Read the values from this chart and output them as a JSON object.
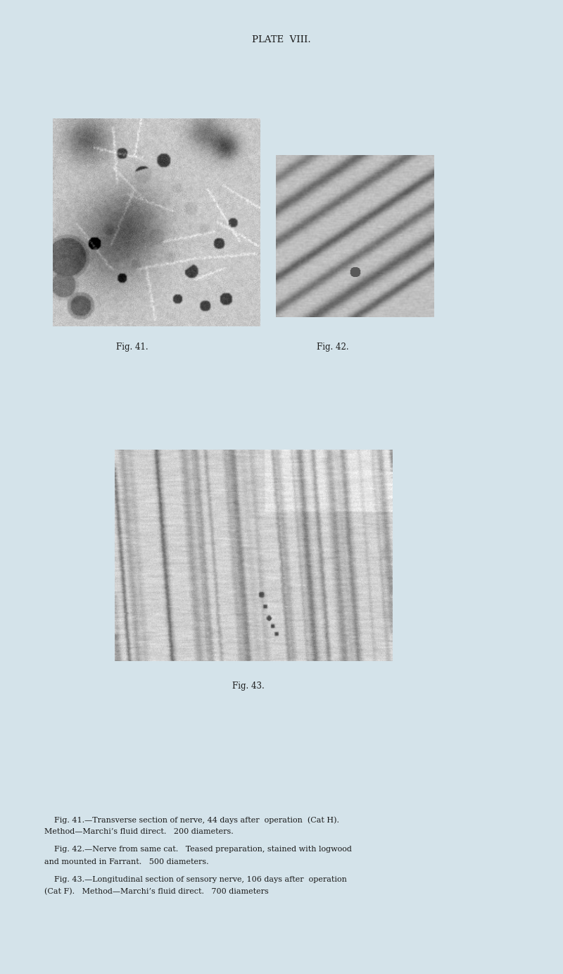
{
  "background_color": "#d4e3ea",
  "page_title": "PLATE  VIII.",
  "title_fontsize": 9.5,
  "label_fontsize": 8.5,
  "caption_fontsize": 8.0,
  "text_color": "#1a1a1a",
  "fig41_caption": "Fig. 41.",
  "fig42_caption": "Fig. 42.",
  "fig43_caption": "Fig. 43.",
  "caption_text_line1": "    Fig. 41.—Transverse section of nerve, 44 days after  operation  (Cat H).",
  "caption_text_line2": "Method—Marchi’s fluid direct.   200 diameters.",
  "caption_text_line3": "    Fig. 42.—Nerve from same cat.   Teased preparation, stained with logwood",
  "caption_text_line4": "and mounted in Farrant.   500 diameters.",
  "caption_text_line5": "    Fig. 43.—Longitudinal section of sensory nerve, 106 days after  operation",
  "caption_text_line6": "(Cat F).   Method—Marchi’s fluid direct.   700 diameters"
}
